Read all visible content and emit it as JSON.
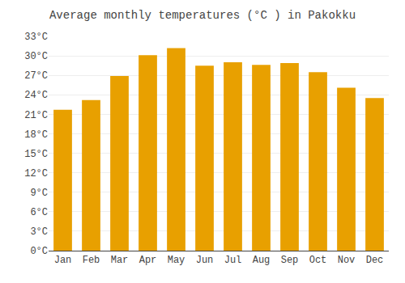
{
  "chart_data": {
    "type": "bar",
    "title": "Average monthly temperatures (°C ) in Pakokku",
    "categories": [
      "Jan",
      "Feb",
      "Mar",
      "Apr",
      "May",
      "Jun",
      "Jul",
      "Aug",
      "Sep",
      "Oct",
      "Nov",
      "Dec"
    ],
    "values": [
      21.7,
      23.2,
      26.9,
      30.1,
      31.2,
      28.5,
      29.0,
      28.6,
      28.9,
      27.5,
      25.1,
      23.5
    ],
    "color": "#E8A000",
    "ylim": [
      0,
      33
    ],
    "yticks": [
      {
        "value": 0,
        "label": "0°C"
      },
      {
        "value": 3,
        "label": "3°C"
      },
      {
        "value": 6,
        "label": "6°C"
      },
      {
        "value": 9,
        "label": "9°C"
      },
      {
        "value": 12,
        "label": "12°C"
      },
      {
        "value": 15,
        "label": "15°C"
      },
      {
        "value": 18,
        "label": "18°C"
      },
      {
        "value": 21,
        "label": "21°C"
      },
      {
        "value": 24,
        "label": "24°C"
      },
      {
        "value": 27,
        "label": "27°C"
      },
      {
        "value": 30,
        "label": "30°C"
      },
      {
        "value": 33,
        "label": "33°C"
      }
    ],
    "grid": true
  }
}
